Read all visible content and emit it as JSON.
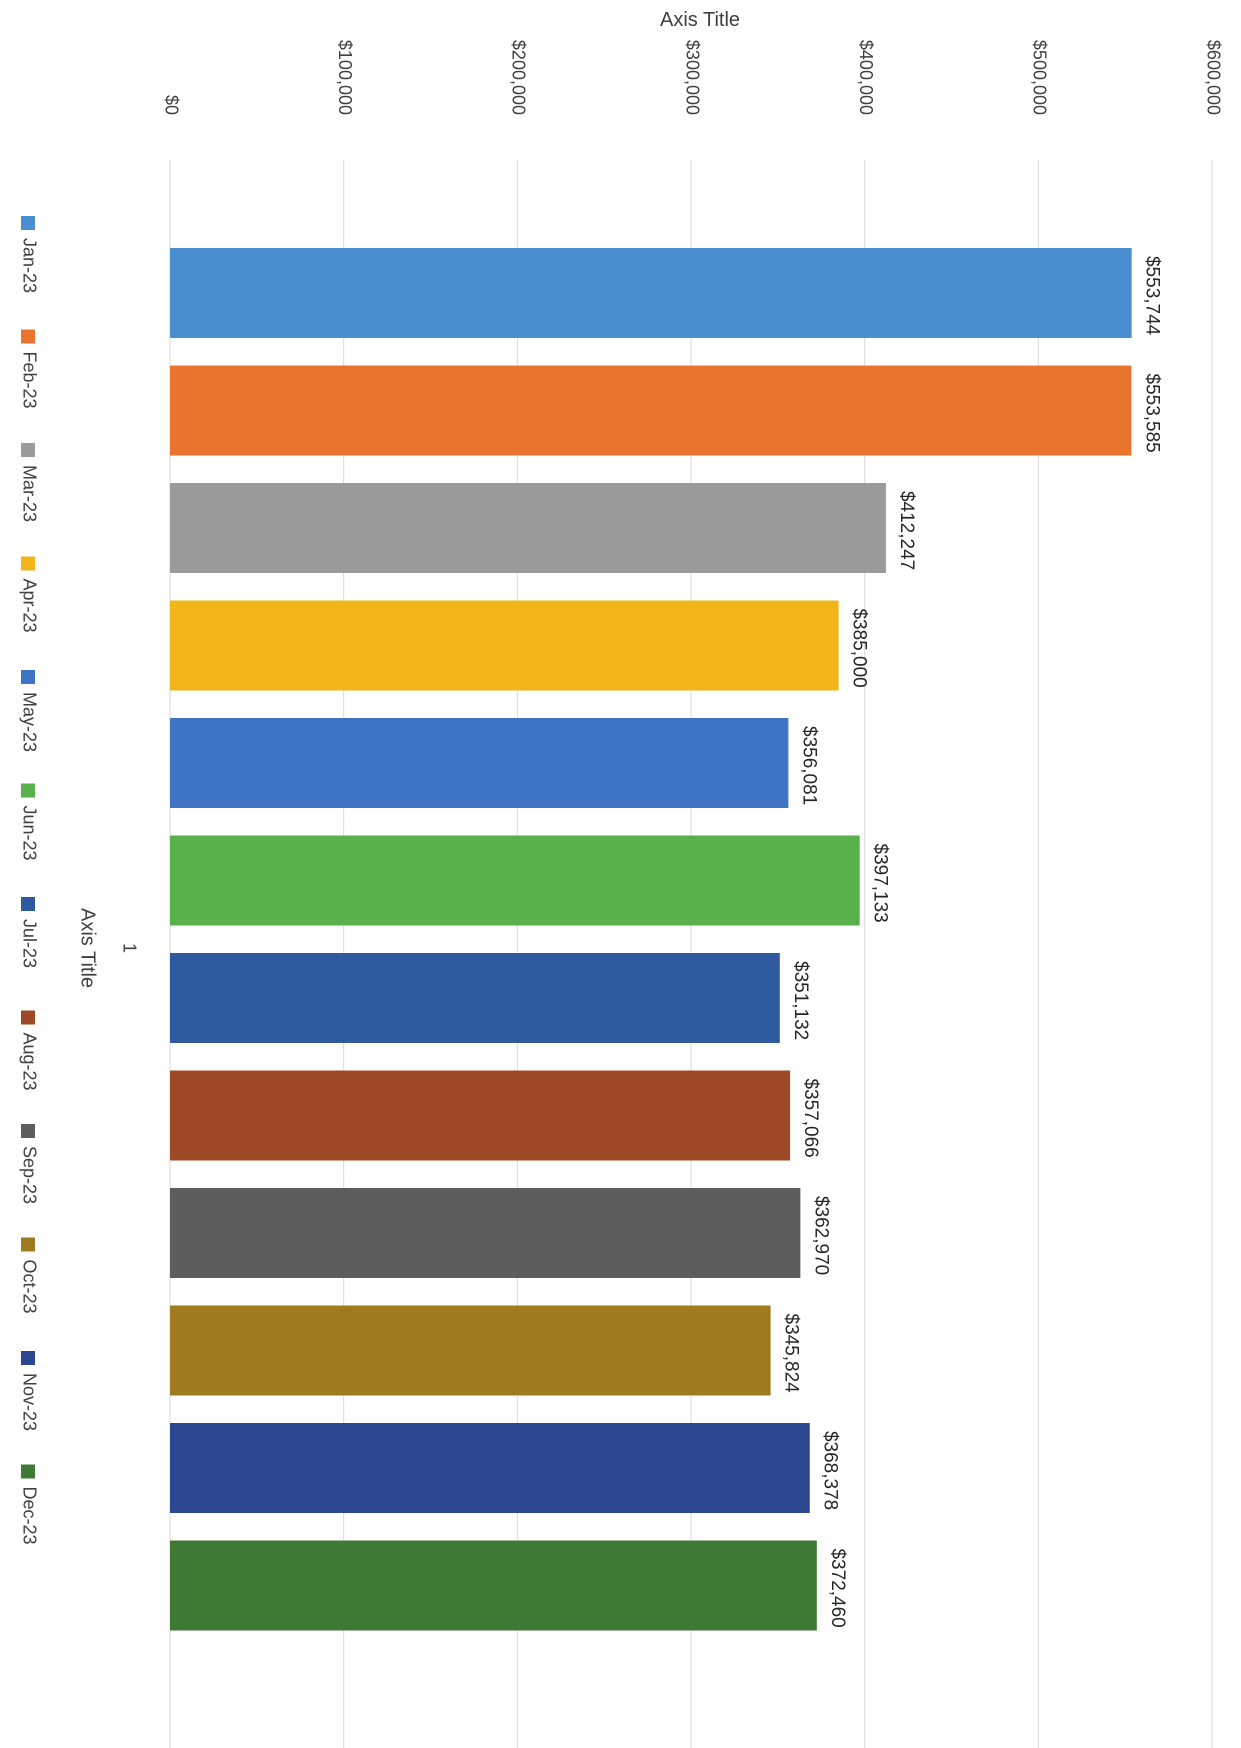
{
  "chart_data": {
    "type": "bar",
    "orientation": "vertical-bars-page-rotated",
    "title": "",
    "value_axis_title": "Axis Title",
    "category_axis_title": "Axis Title",
    "categories": [
      "1"
    ],
    "value_ticks": [
      "$0",
      "$100,000",
      "$200,000",
      "$300,000",
      "$400,000",
      "$500,000",
      "$600,000"
    ],
    "ylim": [
      0,
      600000
    ],
    "grid": true,
    "legend_position": "bottom",
    "series": [
      {
        "name": "Jan-23",
        "values": [
          553744
        ],
        "label": "$553,744",
        "color": "#4a90d0"
      },
      {
        "name": "Feb-23",
        "values": [
          553585
        ],
        "label": "$553,585",
        "color": "#e8742e"
      },
      {
        "name": "Mar-23",
        "values": [
          412247
        ],
        "label": "$412,247",
        "color": "#9b9b9b"
      },
      {
        "name": "Apr-23",
        "values": [
          385000
        ],
        "label": "$385,000",
        "color": "#f2b519"
      },
      {
        "name": "May-23",
        "values": [
          356081
        ],
        "label": "$356,081",
        "color": "#3f73c4"
      },
      {
        "name": "Jun-23",
        "values": [
          397133
        ],
        "label": "$397,133",
        "color": "#58b14a"
      },
      {
        "name": "Jul-23",
        "values": [
          351132
        ],
        "label": "$351,132",
        "color": "#2f5aa0"
      },
      {
        "name": "Aug-23",
        "values": [
          357066
        ],
        "label": "$357,066",
        "color": "#9e4a26"
      },
      {
        "name": "Sep-23",
        "values": [
          362970
        ],
        "label": "$362,970",
        "color": "#5d5d5d"
      },
      {
        "name": "Oct-23",
        "values": [
          345824
        ],
        "label": "$345,824",
        "color": "#9f7a1f"
      },
      {
        "name": "Nov-23",
        "values": [
          368378
        ],
        "label": "$368,378",
        "color": "#2b4791"
      },
      {
        "name": "Dec-23",
        "values": [
          372460
        ],
        "label": "$372,460",
        "color": "#3f7a34"
      }
    ]
  }
}
